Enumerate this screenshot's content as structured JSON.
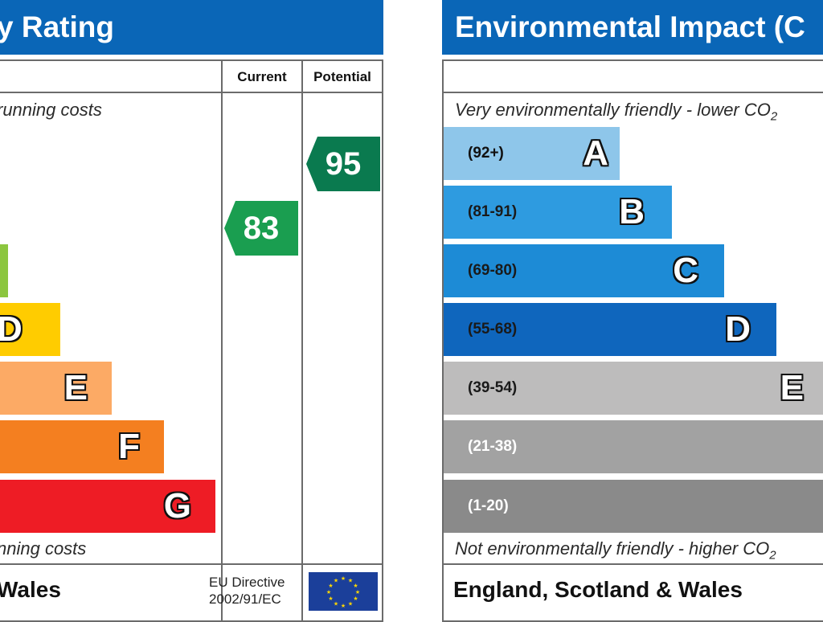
{
  "left_panel": {
    "title": "y Rating",
    "col_current": "Current",
    "col_potential": "Potential",
    "top_note": "running costs",
    "bottom_note": "nning costs",
    "footer": "Wales",
    "directive_line1": "EU Directive",
    "directive_line2": "2002/91/EC",
    "bands": [
      {
        "letter": "",
        "color": "#8cc63f"
      },
      {
        "letter": "D",
        "color": "#ffcc00"
      },
      {
        "letter": "E",
        "color": "#fcaa65"
      },
      {
        "letter": "F",
        "color": "#f47f20"
      },
      {
        "letter": "G",
        "color": "#ee1c25"
      }
    ],
    "current": {
      "value": "83",
      "color": "#1a9e50",
      "band": "B"
    },
    "potential": {
      "value": "95",
      "color": "#0a7a4f",
      "band": "A"
    }
  },
  "right_panel": {
    "title": "Environmental Impact (C",
    "top_note": "Very environmentally friendly - lower CO",
    "top_note_sub": "2",
    "bottom_note": "Not environmentally friendly - higher CO",
    "bottom_note_sub": "2",
    "footer": "England, Scotland & Wales",
    "bands": [
      {
        "range": "(92+)",
        "letter": "A",
        "color": "#8ec6ea",
        "text_color": "#111111"
      },
      {
        "range": "(81-91)",
        "letter": "B",
        "color": "#2e9be0",
        "text_color": "#1a1a1a"
      },
      {
        "range": "(69-80)",
        "letter": "C",
        "color": "#1d8bd6",
        "text_color": "#1a1a1a"
      },
      {
        "range": "(55-68)",
        "letter": "D",
        "color": "#0f66bd",
        "text_color": "#1a1a1a"
      },
      {
        "range": "(39-54)",
        "letter": "E",
        "color": "#bdbcbc",
        "text_color": "#1a1a1a"
      },
      {
        "range": "(21-38)",
        "letter": "",
        "color": "#a2a2a2",
        "text_color": "#ffffff"
      },
      {
        "range": "(1-20)",
        "letter": "",
        "color": "#8a8a8a",
        "text_color": "#ffffff"
      }
    ]
  },
  "colors": {
    "title_bar": "#0a66b7",
    "eu_flag": "#1b3f9a",
    "eu_stars": "#ffd700"
  }
}
